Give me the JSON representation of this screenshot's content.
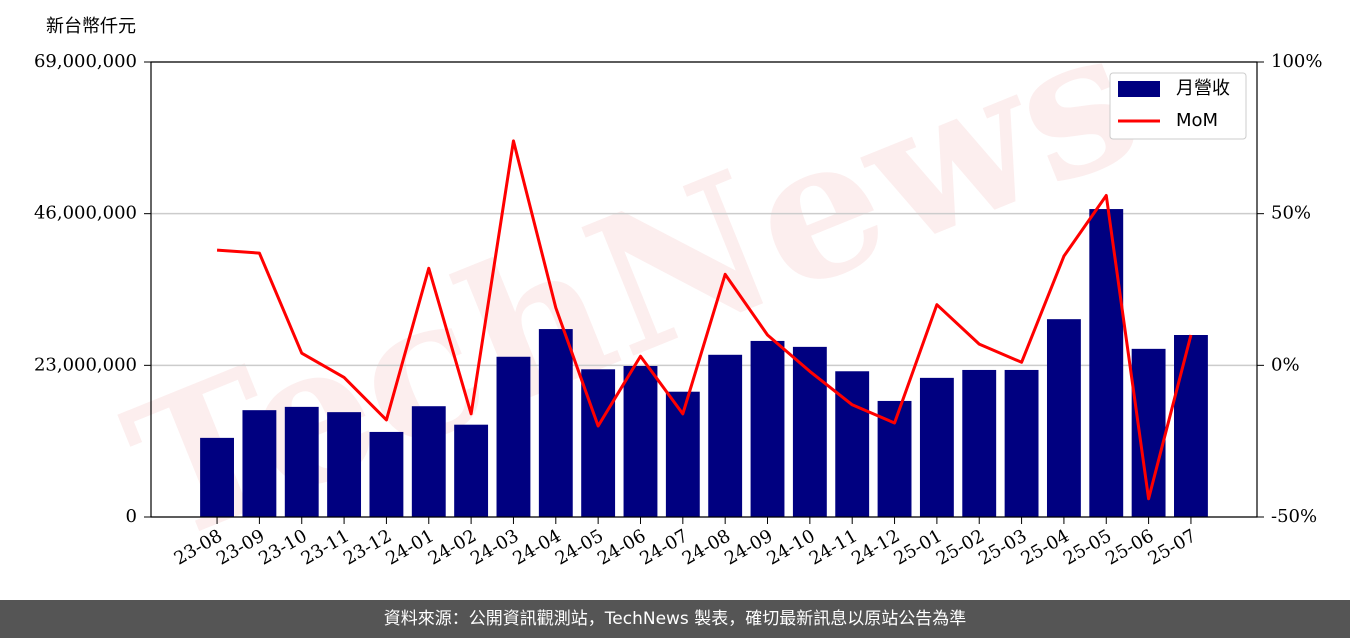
{
  "chart_data": {
    "type": "bar",
    "y_label": "新台幣仟元",
    "watermark": "TechNews",
    "categories": [
      "23-08",
      "23-09",
      "23-10",
      "23-11",
      "23-12",
      "24-01",
      "24-02",
      "24-03",
      "24-04",
      "24-05",
      "24-06",
      "24-07",
      "24-08",
      "24-09",
      "24-10",
      "24-11",
      "24-12",
      "25-01",
      "25-02",
      "25-03",
      "25-04",
      "25-05",
      "25-06",
      "25-07"
    ],
    "series": [
      {
        "name": "月營收",
        "type": "bar",
        "color": "#000080",
        "values": [
          12000000,
          16200000,
          16700000,
          15900000,
          12900000,
          16800000,
          14000000,
          24300000,
          28500000,
          22400000,
          22900000,
          19000000,
          24600000,
          26700000,
          25800000,
          22100000,
          17600000,
          21100000,
          22300000,
          22300000,
          30000000,
          46700000,
          25500000,
          27600000
        ]
      },
      {
        "name": "MoM",
        "type": "line",
        "axis": "y2",
        "color": "#ff0000",
        "values": [
          38,
          37,
          4,
          -4,
          -18,
          32,
          -16,
          74,
          19,
          -20,
          3,
          -16,
          30,
          10,
          -2,
          -13,
          -19,
          20,
          7,
          1,
          36,
          56,
          -44,
          10
        ]
      }
    ],
    "ylim": [
      0,
      69000000
    ],
    "yticks": [
      0,
      {
        "value": 23000000,
        "label": "23,000,000"
      },
      {
        "value": 46000000,
        "label": "46,000,000"
      },
      {
        "value": 69000000,
        "label": "69,000,000"
      }
    ],
    "y2lim": [
      -50,
      100
    ],
    "y2ticks": [
      {
        "value": -50,
        "label": "-50%"
      },
      {
        "value": 0,
        "label": "0%"
      },
      {
        "value": 50,
        "label": "50%"
      },
      {
        "value": 100,
        "label": "100%"
      }
    ],
    "grid": true,
    "legend": "upper right"
  },
  "footer": "資料來源：公開資訊觀測站，TechNews 製表，確切最新訊息以原站公告為準"
}
